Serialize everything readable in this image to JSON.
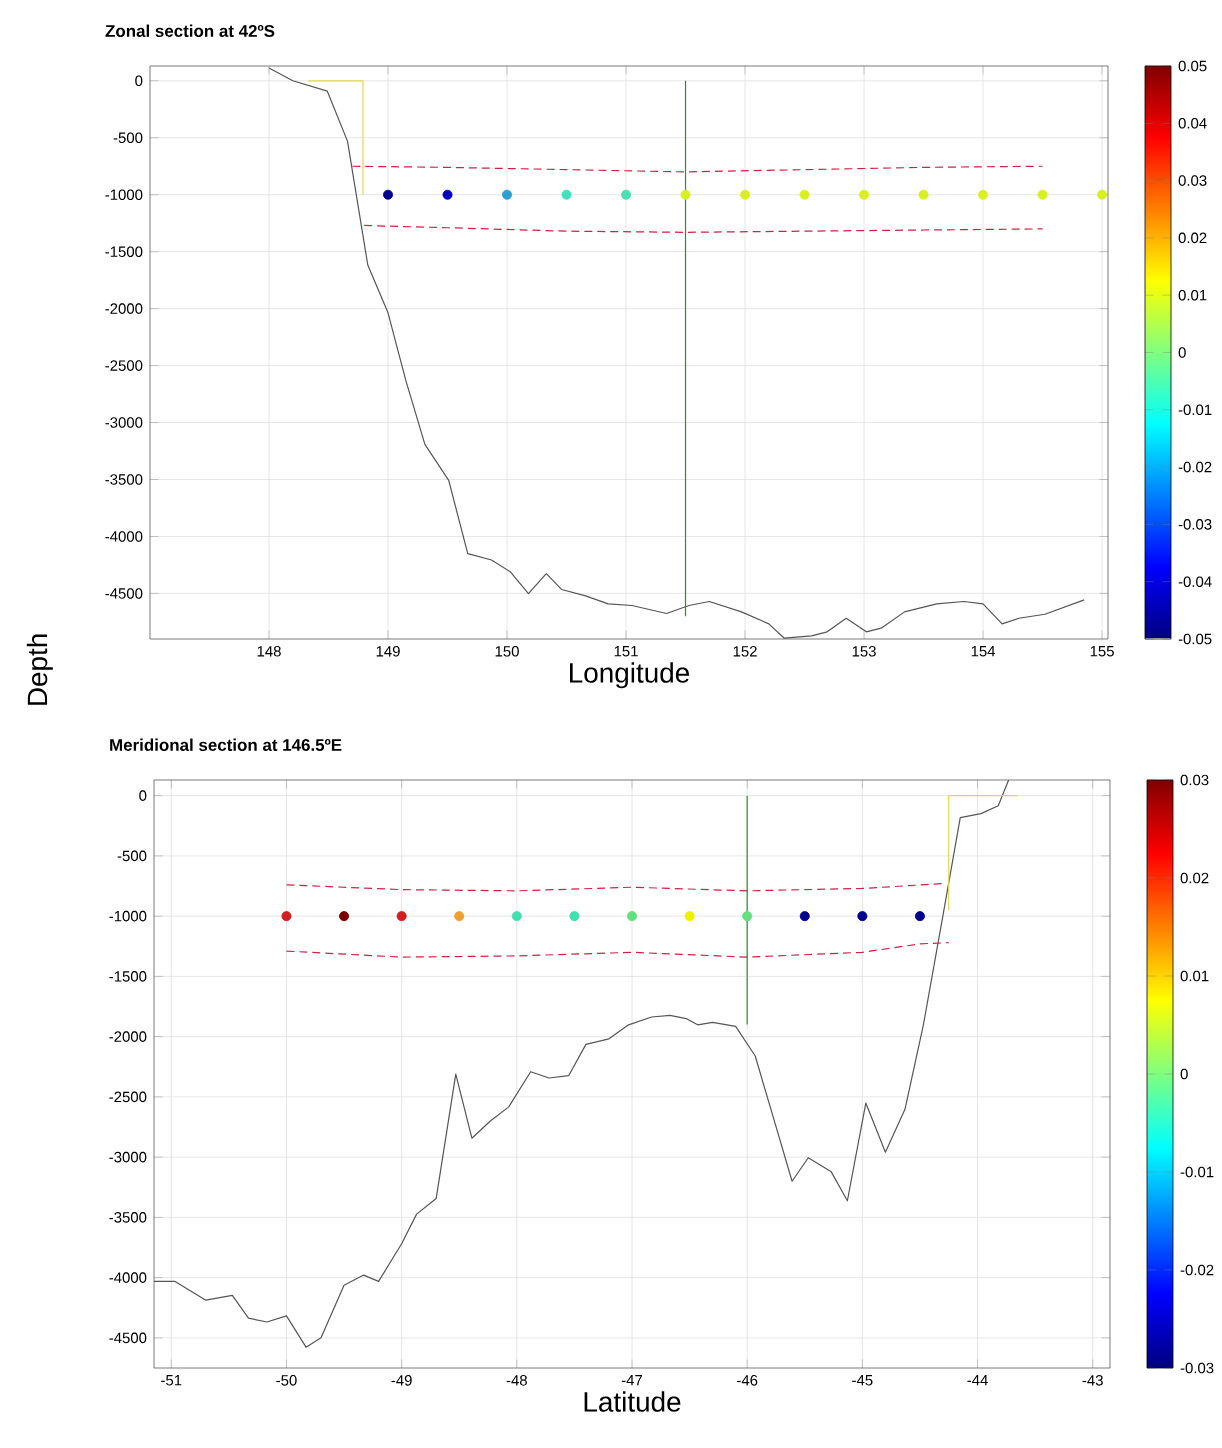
{
  "chart_data": [
    {
      "type": "scatter",
      "title": "Zonal section at 42ºS",
      "xlabel": "Longitude",
      "ylabel": "Depth",
      "xlim": [
        147,
        155.05
      ],
      "ylim": [
        -4900,
        130
      ],
      "xticks": [
        148,
        149,
        150,
        151,
        152,
        153,
        154,
        155
      ],
      "yticks": [
        -4500,
        -4000,
        -3500,
        -3000,
        -2500,
        -2000,
        -1500,
        -1000,
        -500,
        0
      ],
      "grid": true,
      "clim": [
        -0.05,
        0.05
      ],
      "cticks": [
        -0.05,
        -0.04,
        -0.03,
        -0.02,
        -0.01,
        0,
        0.01,
        0.02,
        0.03,
        0.04,
        0.05
      ],
      "series": [
        {
          "type": "line",
          "color": "#555555",
          "x": [
            148.0,
            148.2,
            148.49,
            148.66,
            148.83,
            149.0,
            149.15,
            149.31,
            149.51,
            149.67,
            149.87,
            150.03,
            150.18,
            150.33,
            150.46,
            150.66,
            150.85,
            151.05,
            151.34,
            151.53,
            151.7,
            151.97,
            152.2,
            152.33,
            152.56,
            152.69,
            152.85,
            153.02,
            153.15,
            153.34,
            153.61,
            153.84,
            154.0,
            154.16,
            154.3,
            154.52,
            154.85
          ],
          "values": [
            112,
            0,
            -91,
            -532,
            -1617,
            -2037,
            -2632,
            -3192,
            -3507,
            -4151,
            -4207,
            -4312,
            -4501,
            -4326,
            -4466,
            -4522,
            -4592,
            -4606,
            -4676,
            -4606,
            -4571,
            -4662,
            -4767,
            -4893,
            -4872,
            -4837,
            -4718,
            -4837,
            -4802,
            -4662,
            -4592,
            -4571,
            -4592,
            -4767,
            -4718,
            -4683,
            -4557
          ]
        },
        {
          "type": "line",
          "color": "#cc2244",
          "line_style": "dashed",
          "x": [
            148.7,
            149.5,
            150.5,
            151.5,
            152.5,
            153.5,
            154.5
          ],
          "values": [
            -750,
            -760,
            -780,
            -800,
            -780,
            -760,
            -750
          ]
        },
        {
          "type": "line",
          "color": "#cc2244",
          "line_style": "dashed",
          "x": [
            148.8,
            149.5,
            150.5,
            151.5,
            152.5,
            153.5,
            154.5
          ],
          "values": [
            -1270,
            -1290,
            -1320,
            -1330,
            -1320,
            -1310,
            -1300
          ]
        },
        {
          "type": "line",
          "color": "#2e8b2e",
          "x": [
            151.5,
            151.5
          ],
          "values": [
            0,
            -4700
          ]
        },
        {
          "type": "line",
          "color": "#e0d850",
          "x": [
            148.33,
            148.79,
            148.79
          ],
          "values": [
            0,
            0,
            -1000
          ]
        },
        {
          "marker": "circle",
          "x": [
            149,
            149.5,
            150,
            150.5,
            151,
            151.5,
            152,
            152.5,
            153,
            153.5,
            154,
            154.5,
            155
          ],
          "values": [
            -1000,
            -1000,
            -1000,
            -1000,
            -1000,
            -1000,
            -1000,
            -1000,
            -1000,
            -1000,
            -1000,
            -1000,
            -1000
          ],
          "colors": [
            "#00008f",
            "#0000c0",
            "#2aa0d0",
            "#40e0c0",
            "#48e0b0",
            "#d8f020",
            "#d8f020",
            "#d8f020",
            "#d8f020",
            "#d8f020",
            "#d8f020",
            "#d8f020",
            "#d8f020"
          ]
        }
      ]
    },
    {
      "type": "scatter",
      "title": "Meridional section at 146.5ºE",
      "xlabel": "Latitude",
      "xlim": [
        -51.15,
        -42.85
      ],
      "ylim": [
        -4750,
        130
      ],
      "xticks": [
        -51,
        -50,
        -49,
        -48,
        -47,
        -46,
        -45,
        -44,
        -43
      ],
      "yticks": [
        -4500,
        -4000,
        -3500,
        -3000,
        -2500,
        -2000,
        -1500,
        -1000,
        -500,
        0
      ],
      "grid": true,
      "clim": [
        -0.03,
        0.03
      ],
      "cticks": [
        -0.03,
        -0.02,
        -0.01,
        0,
        0.01,
        0.02,
        0.03
      ],
      "series": [
        {
          "type": "line",
          "color": "#555555",
          "x": [
            -51.15,
            -50.97,
            -50.7,
            -50.47,
            -50.33,
            -50.17,
            -50.0,
            -49.83,
            -49.7,
            -49.5,
            -49.33,
            -49.2,
            -49.0,
            -48.87,
            -48.7,
            -48.53,
            -48.39,
            -48.23,
            -48.07,
            -47.88,
            -47.72,
            -47.55,
            -47.4,
            -47.2,
            -47.03,
            -46.83,
            -46.67,
            -46.53,
            -46.43,
            -46.3,
            -46.1,
            -45.93,
            -45.8,
            -45.61,
            -45.47,
            -45.27,
            -45.13,
            -44.97,
            -44.8,
            -44.63,
            -44.47,
            -44.3,
            -44.15,
            -43.97,
            -43.82,
            -43.73
          ],
          "values": [
            -4031,
            -4031,
            -4187,
            -4148,
            -4336,
            -4368,
            -4317,
            -4577,
            -4499,
            -4064,
            -3979,
            -4031,
            -3719,
            -3473,
            -3343,
            -2311,
            -2843,
            -2700,
            -2583,
            -2291,
            -2343,
            -2324,
            -2064,
            -2018,
            -1902,
            -1837,
            -1824,
            -1850,
            -1902,
            -1882,
            -1915,
            -2161,
            -2583,
            -3200,
            -3005,
            -3122,
            -3362,
            -2551,
            -2959,
            -2603,
            -1902,
            -993,
            -182,
            -149,
            -84,
            130
          ]
        },
        {
          "type": "line",
          "color": "#cc2244",
          "line_style": "dashed",
          "x": [
            -50,
            -49,
            -48,
            -47,
            -46,
            -45,
            -44.3
          ],
          "values": [
            -740,
            -780,
            -790,
            -760,
            -790,
            -770,
            -730
          ]
        },
        {
          "type": "line",
          "color": "#cc2244",
          "line_style": "dashed",
          "x": [
            -50,
            -49,
            -48,
            -47,
            -46,
            -45,
            -44.5,
            -44.25
          ],
          "values": [
            -1290,
            -1340,
            -1330,
            -1300,
            -1340,
            -1300,
            -1230,
            -1220
          ]
        },
        {
          "type": "line",
          "color": "#2e8b2e",
          "x": [
            -46,
            -46
          ],
          "values": [
            0,
            -1900
          ]
        },
        {
          "type": "line",
          "color": "#e0d850",
          "x": [
            -44.25,
            -44.25,
            -43.65
          ],
          "values": [
            -950,
            0,
            0
          ]
        },
        {
          "marker": "circle",
          "x": [
            -50,
            -49.5,
            -49,
            -48.5,
            -48,
            -47.5,
            -47,
            -46.5,
            -46,
            -45.5,
            -45,
            -44.5
          ],
          "values": [
            -1000,
            -1000,
            -1000,
            -1000,
            -1000,
            -1000,
            -1000,
            -1000,
            -1000,
            -1000,
            -1000,
            -1000
          ],
          "colors": [
            "#d02020",
            "#7a0000",
            "#d02020",
            "#f0a030",
            "#40e0b0",
            "#40e0b0",
            "#60e080",
            "#f0f000",
            "#60e080",
            "#000090",
            "#000090",
            "#000090"
          ]
        }
      ]
    }
  ]
}
